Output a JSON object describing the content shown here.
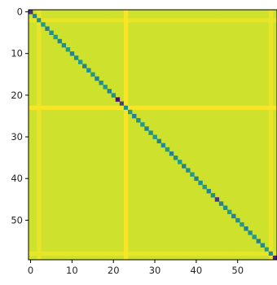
{
  "chart_data": {
    "type": "heatmap",
    "rows": 60,
    "cols": 60,
    "origin": "upper-left",
    "colormap": "viridis",
    "value_range": [
      0,
      1
    ],
    "background_value": 0.93,
    "diagonal_pattern": [
      0.55,
      0.45,
      0.5
    ],
    "darker_diagonal": [
      {
        "index": 0,
        "value": 0.15
      },
      {
        "index": 21,
        "value": 0.05
      },
      {
        "index": 22,
        "value": 0.2
      },
      {
        "index": 45,
        "value": 0.18
      },
      {
        "index": 59,
        "value": 0.1
      }
    ],
    "bright_rows": [
      {
        "index": 23,
        "value": 0.99
      }
    ],
    "bright_cols": [
      {
        "index": 23,
        "value": 0.99
      }
    ],
    "faint_rows": [
      {
        "index": 2,
        "value": 0.97
      },
      {
        "index": 58,
        "value": 0.97
      }
    ],
    "faint_cols": [
      {
        "index": 2,
        "value": 0.97
      },
      {
        "index": 58,
        "value": 0.97
      }
    ],
    "x_ticks": [
      0,
      10,
      20,
      30,
      40,
      50
    ],
    "y_ticks": [
      0,
      10,
      20,
      30,
      40,
      50
    ],
    "x_tick_labels": [
      "0",
      "10",
      "20",
      "30",
      "40",
      "50"
    ],
    "y_tick_labels": [
      "0",
      "10",
      "20",
      "30",
      "40",
      "50"
    ],
    "title": "",
    "xlabel": "",
    "ylabel": ""
  }
}
